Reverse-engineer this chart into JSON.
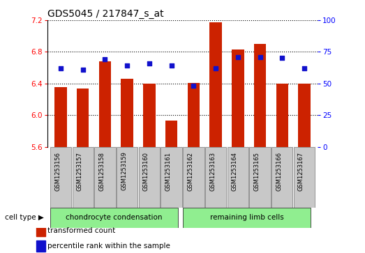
{
  "title": "GDS5045 / 217847_s_at",
  "samples": [
    "GSM1253156",
    "GSM1253157",
    "GSM1253158",
    "GSM1253159",
    "GSM1253160",
    "GSM1253161",
    "GSM1253162",
    "GSM1253163",
    "GSM1253164",
    "GSM1253165",
    "GSM1253166",
    "GSM1253167"
  ],
  "transformed_count": [
    6.35,
    6.34,
    6.68,
    6.46,
    6.4,
    5.93,
    6.41,
    7.17,
    6.83,
    6.9,
    6.4,
    6.4
  ],
  "percentile_rank": [
    62,
    61,
    69,
    64,
    66,
    64,
    48,
    62,
    71,
    71,
    70,
    62
  ],
  "cell_types": [
    {
      "label": "chondrocyte condensation",
      "start": 0,
      "end": 6
    },
    {
      "label": "remaining limb cells",
      "start": 6,
      "end": 12
    }
  ],
  "ylim_left": [
    5.6,
    7.2
  ],
  "ylim_right": [
    0,
    100
  ],
  "yticks_left": [
    5.6,
    6.0,
    6.4,
    6.8,
    7.2
  ],
  "yticks_right": [
    0,
    25,
    50,
    75,
    100
  ],
  "bar_color": "#CC2200",
  "dot_color": "#1111CC",
  "bar_width": 0.55,
  "legend_items": [
    {
      "label": "transformed count",
      "color": "#CC2200"
    },
    {
      "label": "percentile rank within the sample",
      "color": "#1111CC"
    }
  ],
  "cell_type_label": "cell type",
  "sample_box_color": "#C8C8C8",
  "cell_type_color": "#90EE90",
  "plot_bg": "#FFFFFF",
  "fig_bg": "#FFFFFF"
}
